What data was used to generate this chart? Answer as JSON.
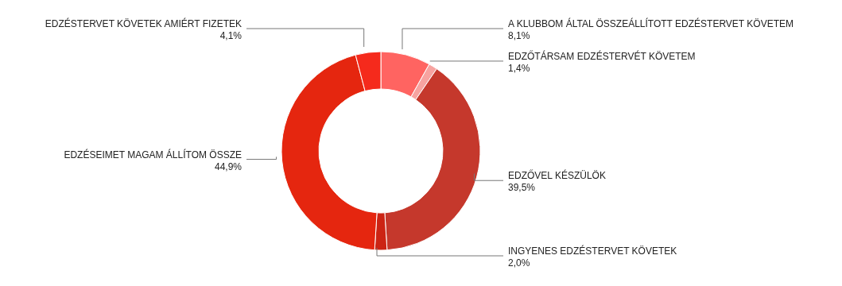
{
  "chart_data": {
    "type": "donut",
    "categories": [
      "A KLUBBOM ÁLTAL ÖSSZEÁLLÍTOTT EDZÉSTERVET KÖVETEM",
      "EDZŐTÁRSAM EDZÉSTERVÉT KÖVETEM",
      "EDZŐVEL KÉSZÜLÖK",
      "INGYENES EDZÉSTERVET KÖVETEK",
      "EDZÉSEIMET MAGAM ÁLLÍTOM ÖSSZE",
      "EDZÉSTERVET KÖVETEK AMIÉRT FIZETEK"
    ],
    "values": [
      8.1,
      1.4,
      39.5,
      2.0,
      44.9,
      4.1
    ],
    "colors": [
      "#ff6461",
      "#f7a3a0",
      "#c5382c",
      "#cc2414",
      "#e5260f",
      "#f52a1c"
    ],
    "value_labels": [
      "8,1%",
      "1,4%",
      "39,5%",
      "2,0%",
      "44,9%",
      "4,1%"
    ]
  }
}
